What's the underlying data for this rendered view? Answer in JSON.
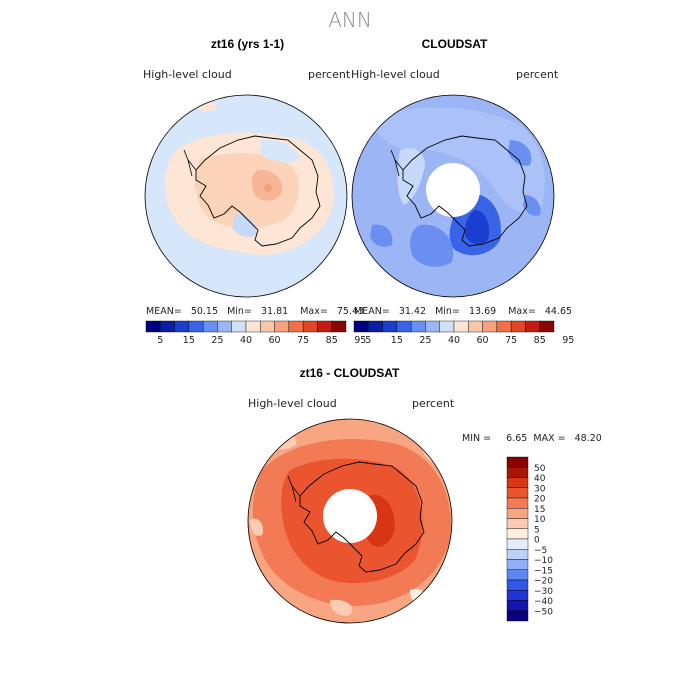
{
  "title": "ANN",
  "colors": {
    "abs_scale": [
      "#00007f",
      "#0a1fa8",
      "#1a3fd0",
      "#3a64e8",
      "#6a8ff0",
      "#9cb6f5",
      "#cfe0fb",
      "#fbe6d5",
      "#fbc7a9",
      "#f7a07c",
      "#f0704a",
      "#e14526",
      "#c11e10",
      "#8a0505"
    ],
    "diff_scale": [
      "#0a007f",
      "#1414b4",
      "#1f35d6",
      "#2f57ea",
      "#5d86f2",
      "#8fb0f6",
      "#bcd1f9",
      "#e2ecfc",
      "#fdeee2",
      "#fbccb3",
      "#f8a582",
      "#f27b55",
      "#ea5530",
      "#d73614",
      "#a81805",
      "#8a0000"
    ]
  },
  "panels": {
    "left": {
      "title": "zt16 (yrs 1-1)",
      "left_label": "High-level cloud",
      "right_label": "percent",
      "stats": "MEAN=   50.15   Min=   31.81    Max=   75.43"
    },
    "right": {
      "title": "CLOUDSAT",
      "left_label": "High-level cloud",
      "right_label": "percent",
      "stats": "MEAN=   31.42   Min=   13.69    Max=   44.65"
    },
    "bottom": {
      "title": "zt16 - CLOUDSAT",
      "left_label": "High-level cloud",
      "right_label": "percent",
      "stats": "MIN =     6.65  MAX =   48.20"
    }
  },
  "chart_data": [
    {
      "type": "heatmap",
      "title": "zt16 (yrs 1-1)",
      "variable": "High-level cloud",
      "units": "percent",
      "projection": "south polar stereographic",
      "mean": 50.15,
      "min": 31.81,
      "max": 75.43,
      "colorbar_ticks": [
        "5",
        "15",
        "25",
        "40",
        "60",
        "75",
        "85",
        "95"
      ]
    },
    {
      "type": "heatmap",
      "title": "CLOUDSAT",
      "variable": "High-level cloud",
      "units": "percent",
      "projection": "south polar stereographic",
      "mean": 31.42,
      "min": 13.69,
      "max": 44.65,
      "colorbar_ticks": [
        "5",
        "15",
        "25",
        "40",
        "60",
        "75",
        "85",
        "95"
      ]
    },
    {
      "type": "heatmap",
      "title": "zt16 - CLOUDSAT",
      "variable": "High-level cloud",
      "units": "percent",
      "projection": "south polar stereographic",
      "min": 6.65,
      "max": 48.2,
      "colorbar_ticks": [
        "50",
        "40",
        "30",
        "20",
        "15",
        "10",
        "5",
        "0",
        "−5",
        "−10",
        "−15",
        "−20",
        "−30",
        "−40",
        "−50"
      ]
    }
  ]
}
